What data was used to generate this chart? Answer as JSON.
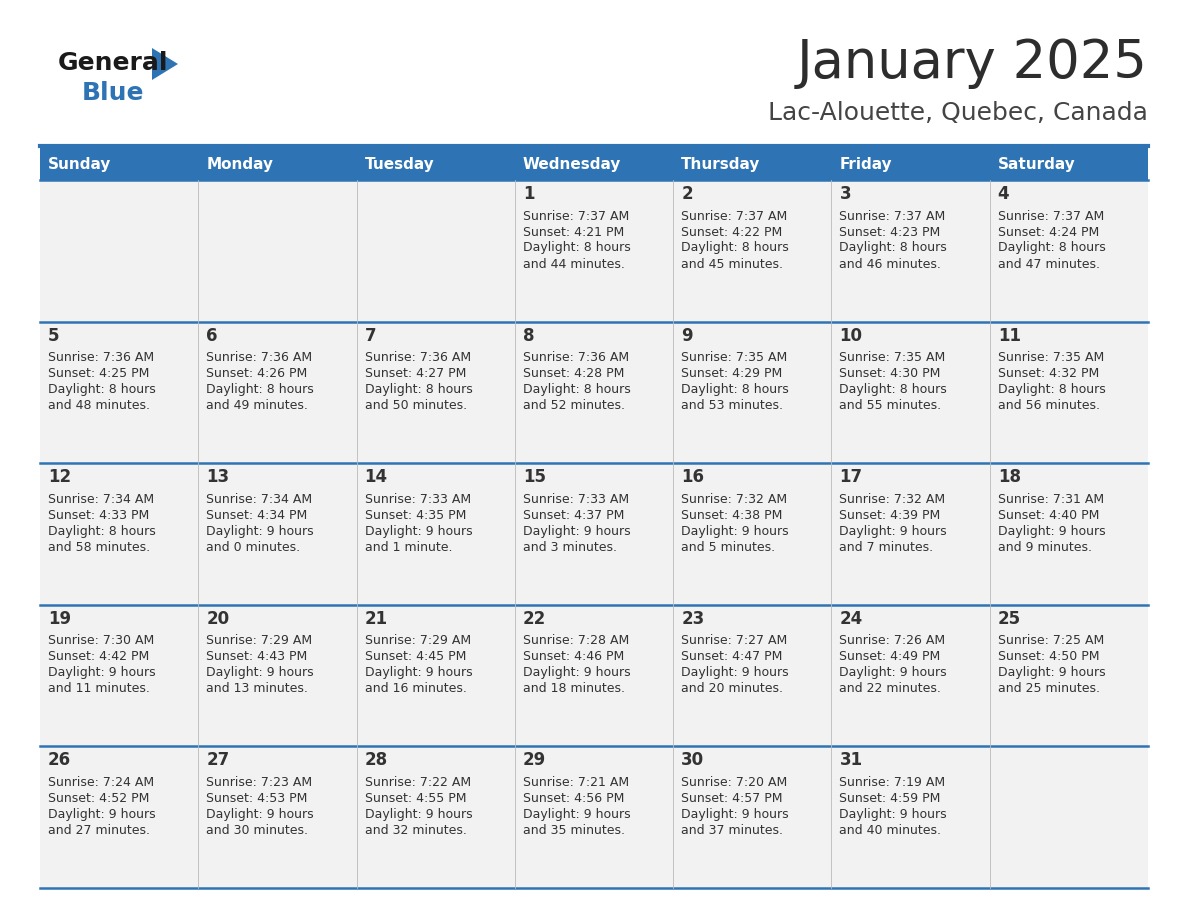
{
  "title": "January 2025",
  "subtitle": "Lac-Alouette, Quebec, Canada",
  "days_of_week": [
    "Sunday",
    "Monday",
    "Tuesday",
    "Wednesday",
    "Thursday",
    "Friday",
    "Saturday"
  ],
  "header_bg": "#2E74B5",
  "header_text": "#FFFFFF",
  "cell_bg": "#F2F2F2",
  "cell_text": "#333333",
  "separator_color": "#2E74B5",
  "title_color": "#2D2D2D",
  "subtitle_color": "#444444",
  "logo_general_color": "#1A1A1A",
  "logo_blue_color": "#2E74B5",
  "calendar_data": [
    [
      {
        "day": "",
        "sunrise": "",
        "sunset": "",
        "daylight": ""
      },
      {
        "day": "",
        "sunrise": "",
        "sunset": "",
        "daylight": ""
      },
      {
        "day": "",
        "sunrise": "",
        "sunset": "",
        "daylight": ""
      },
      {
        "day": "1",
        "sunrise": "7:37 AM",
        "sunset": "4:21 PM",
        "daylight": "8 hours\nand 44 minutes."
      },
      {
        "day": "2",
        "sunrise": "7:37 AM",
        "sunset": "4:22 PM",
        "daylight": "8 hours\nand 45 minutes."
      },
      {
        "day": "3",
        "sunrise": "7:37 AM",
        "sunset": "4:23 PM",
        "daylight": "8 hours\nand 46 minutes."
      },
      {
        "day": "4",
        "sunrise": "7:37 AM",
        "sunset": "4:24 PM",
        "daylight": "8 hours\nand 47 minutes."
      }
    ],
    [
      {
        "day": "5",
        "sunrise": "7:36 AM",
        "sunset": "4:25 PM",
        "daylight": "8 hours\nand 48 minutes."
      },
      {
        "day": "6",
        "sunrise": "7:36 AM",
        "sunset": "4:26 PM",
        "daylight": "8 hours\nand 49 minutes."
      },
      {
        "day": "7",
        "sunrise": "7:36 AM",
        "sunset": "4:27 PM",
        "daylight": "8 hours\nand 50 minutes."
      },
      {
        "day": "8",
        "sunrise": "7:36 AM",
        "sunset": "4:28 PM",
        "daylight": "8 hours\nand 52 minutes."
      },
      {
        "day": "9",
        "sunrise": "7:35 AM",
        "sunset": "4:29 PM",
        "daylight": "8 hours\nand 53 minutes."
      },
      {
        "day": "10",
        "sunrise": "7:35 AM",
        "sunset": "4:30 PM",
        "daylight": "8 hours\nand 55 minutes."
      },
      {
        "day": "11",
        "sunrise": "7:35 AM",
        "sunset": "4:32 PM",
        "daylight": "8 hours\nand 56 minutes."
      }
    ],
    [
      {
        "day": "12",
        "sunrise": "7:34 AM",
        "sunset": "4:33 PM",
        "daylight": "8 hours\nand 58 minutes."
      },
      {
        "day": "13",
        "sunrise": "7:34 AM",
        "sunset": "4:34 PM",
        "daylight": "9 hours\nand 0 minutes."
      },
      {
        "day": "14",
        "sunrise": "7:33 AM",
        "sunset": "4:35 PM",
        "daylight": "9 hours\nand 1 minute."
      },
      {
        "day": "15",
        "sunrise": "7:33 AM",
        "sunset": "4:37 PM",
        "daylight": "9 hours\nand 3 minutes."
      },
      {
        "day": "16",
        "sunrise": "7:32 AM",
        "sunset": "4:38 PM",
        "daylight": "9 hours\nand 5 minutes."
      },
      {
        "day": "17",
        "sunrise": "7:32 AM",
        "sunset": "4:39 PM",
        "daylight": "9 hours\nand 7 minutes."
      },
      {
        "day": "18",
        "sunrise": "7:31 AM",
        "sunset": "4:40 PM",
        "daylight": "9 hours\nand 9 minutes."
      }
    ],
    [
      {
        "day": "19",
        "sunrise": "7:30 AM",
        "sunset": "4:42 PM",
        "daylight": "9 hours\nand 11 minutes."
      },
      {
        "day": "20",
        "sunrise": "7:29 AM",
        "sunset": "4:43 PM",
        "daylight": "9 hours\nand 13 minutes."
      },
      {
        "day": "21",
        "sunrise": "7:29 AM",
        "sunset": "4:45 PM",
        "daylight": "9 hours\nand 16 minutes."
      },
      {
        "day": "22",
        "sunrise": "7:28 AM",
        "sunset": "4:46 PM",
        "daylight": "9 hours\nand 18 minutes."
      },
      {
        "day": "23",
        "sunrise": "7:27 AM",
        "sunset": "4:47 PM",
        "daylight": "9 hours\nand 20 minutes."
      },
      {
        "day": "24",
        "sunrise": "7:26 AM",
        "sunset": "4:49 PM",
        "daylight": "9 hours\nand 22 minutes."
      },
      {
        "day": "25",
        "sunrise": "7:25 AM",
        "sunset": "4:50 PM",
        "daylight": "9 hours\nand 25 minutes."
      }
    ],
    [
      {
        "day": "26",
        "sunrise": "7:24 AM",
        "sunset": "4:52 PM",
        "daylight": "9 hours\nand 27 minutes."
      },
      {
        "day": "27",
        "sunrise": "7:23 AM",
        "sunset": "4:53 PM",
        "daylight": "9 hours\nand 30 minutes."
      },
      {
        "day": "28",
        "sunrise": "7:22 AM",
        "sunset": "4:55 PM",
        "daylight": "9 hours\nand 32 minutes."
      },
      {
        "day": "29",
        "sunrise": "7:21 AM",
        "sunset": "4:56 PM",
        "daylight": "9 hours\nand 35 minutes."
      },
      {
        "day": "30",
        "sunrise": "7:20 AM",
        "sunset": "4:57 PM",
        "daylight": "9 hours\nand 37 minutes."
      },
      {
        "day": "31",
        "sunrise": "7:19 AM",
        "sunset": "4:59 PM",
        "daylight": "9 hours\nand 40 minutes."
      },
      {
        "day": "",
        "sunrise": "",
        "sunset": "",
        "daylight": ""
      }
    ]
  ]
}
